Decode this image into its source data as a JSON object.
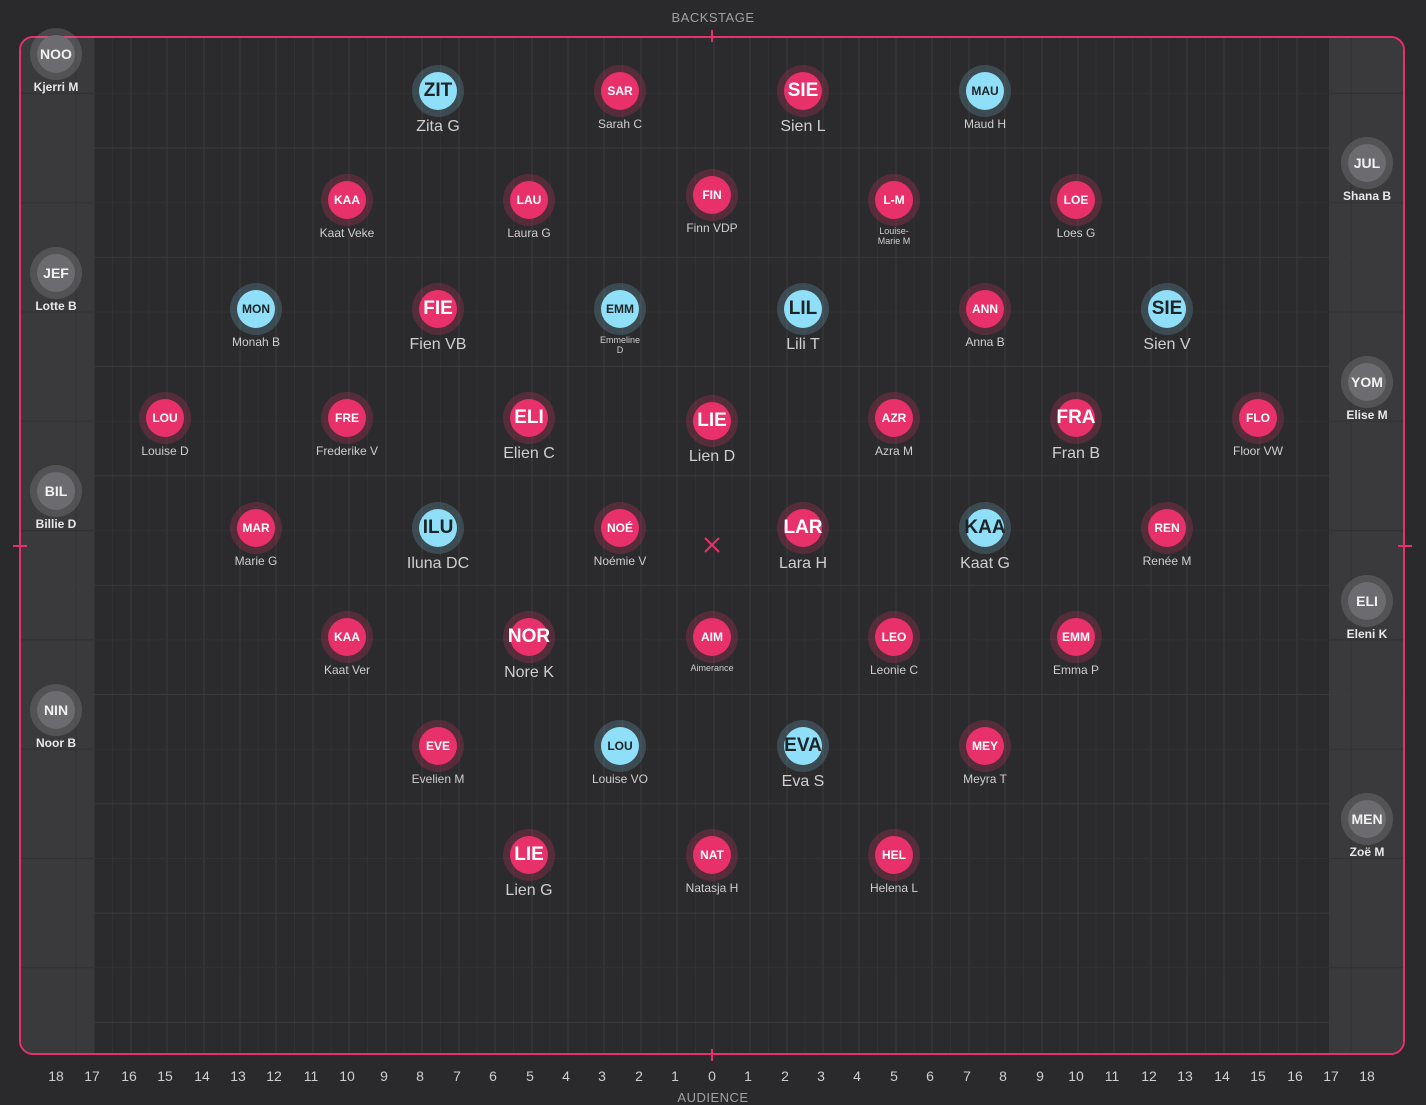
{
  "labels": {
    "backstage": "BACKSTAGE",
    "audience": "AUDIENCE"
  },
  "colors": {
    "accent": "#e8306a",
    "pink": "#e8306a",
    "blue": "#8edff7",
    "grey": "#6b6b70",
    "background": "#2a2a2c"
  },
  "axis": [
    "18",
    "17",
    "16",
    "15",
    "14",
    "13",
    "12",
    "11",
    "10",
    "9",
    "8",
    "7",
    "6",
    "5",
    "4",
    "3",
    "2",
    "1",
    "0",
    "1",
    "2",
    "3",
    "4",
    "5",
    "6",
    "7",
    "8",
    "9",
    "10",
    "11",
    "12",
    "13",
    "14",
    "15",
    "16",
    "17",
    "18"
  ],
  "dancers": [
    {
      "code": "NOO",
      "name": "Kjerri M",
      "color": "grey"
    },
    {
      "code": "ZIT",
      "name": "Zita G",
      "color": "blue"
    },
    {
      "code": "SAR",
      "name": "Sarah C",
      "color": "pink"
    },
    {
      "code": "SIE",
      "name": "Sien L",
      "color": "pink"
    },
    {
      "code": "MAU",
      "name": "Maud H",
      "color": "blue"
    },
    {
      "code": "JUL",
      "name": "Shana B",
      "color": "grey"
    },
    {
      "code": "KAA",
      "name": "Kaat Veke",
      "color": "pink"
    },
    {
      "code": "LAU",
      "name": "Laura G",
      "color": "pink"
    },
    {
      "code": "FIN",
      "name": "Finn VDP",
      "color": "pink"
    },
    {
      "code": "L-M",
      "name": "Louise-Marie M",
      "color": "pink"
    },
    {
      "code": "LOE",
      "name": "Loes G",
      "color": "pink"
    },
    {
      "code": "JEF",
      "name": "Lotte B",
      "color": "grey"
    },
    {
      "code": "MON",
      "name": "Monah B",
      "color": "blue"
    },
    {
      "code": "FIE",
      "name": "Fien VB",
      "color": "pink"
    },
    {
      "code": "EMM",
      "name": "Emmeline D",
      "color": "blue"
    },
    {
      "code": "LIL",
      "name": "Lili T",
      "color": "blue"
    },
    {
      "code": "ANN",
      "name": "Anna B",
      "color": "pink"
    },
    {
      "code": "SIE",
      "name": "Sien V",
      "color": "blue"
    },
    {
      "code": "YOM",
      "name": "Elise M",
      "color": "grey"
    },
    {
      "code": "LOU",
      "name": "Louise D",
      "color": "pink"
    },
    {
      "code": "FRE",
      "name": "Frederike V",
      "color": "pink"
    },
    {
      "code": "ELI",
      "name": "Elien C",
      "color": "pink"
    },
    {
      "code": "LIE",
      "name": "Lien D",
      "color": "pink"
    },
    {
      "code": "AZR",
      "name": "Azra M",
      "color": "pink"
    },
    {
      "code": "FRA",
      "name": "Fran B",
      "color": "pink"
    },
    {
      "code": "FLO",
      "name": "Floor VW",
      "color": "pink"
    },
    {
      "code": "BIL",
      "name": "Billie D",
      "color": "grey"
    },
    {
      "code": "MAR",
      "name": "Marie G",
      "color": "pink"
    },
    {
      "code": "ILU",
      "name": "Iluna DC",
      "color": "blue"
    },
    {
      "code": "NOÉ",
      "name": "Noémie V",
      "color": "pink"
    },
    {
      "code": "LAR",
      "name": "Lara H",
      "color": "pink"
    },
    {
      "code": "KAA",
      "name": "Kaat G",
      "color": "blue"
    },
    {
      "code": "REN",
      "name": "Renée M",
      "color": "pink"
    },
    {
      "code": "ELI",
      "name": "Eleni K",
      "color": "grey"
    },
    {
      "code": "KAA",
      "name": "Kaat Ver",
      "color": "pink"
    },
    {
      "code": "NOR",
      "name": "Nore K",
      "color": "pink"
    },
    {
      "code": "AIM",
      "name": "Aimerance",
      "color": "pink"
    },
    {
      "code": "LEO",
      "name": "Leonie C",
      "color": "pink"
    },
    {
      "code": "EMM",
      "name": "Emma P",
      "color": "pink"
    },
    {
      "code": "NIN",
      "name": "Noor B",
      "color": "grey"
    },
    {
      "code": "EVE",
      "name": "Evelien M",
      "color": "pink"
    },
    {
      "code": "LOU",
      "name": "Louise VO",
      "color": "blue"
    },
    {
      "code": "EVA",
      "name": "Eva S",
      "color": "blue"
    },
    {
      "code": "MEY",
      "name": "Meyra T",
      "color": "pink"
    },
    {
      "code": "MEN",
      "name": "Zoë M",
      "color": "grey"
    },
    {
      "code": "LIE",
      "name": "Lien G",
      "color": "pink"
    },
    {
      "code": "NAT",
      "name": "Natasja H",
      "color": "pink"
    },
    {
      "code": "HEL",
      "name": "Helena L",
      "color": "pink"
    }
  ]
}
